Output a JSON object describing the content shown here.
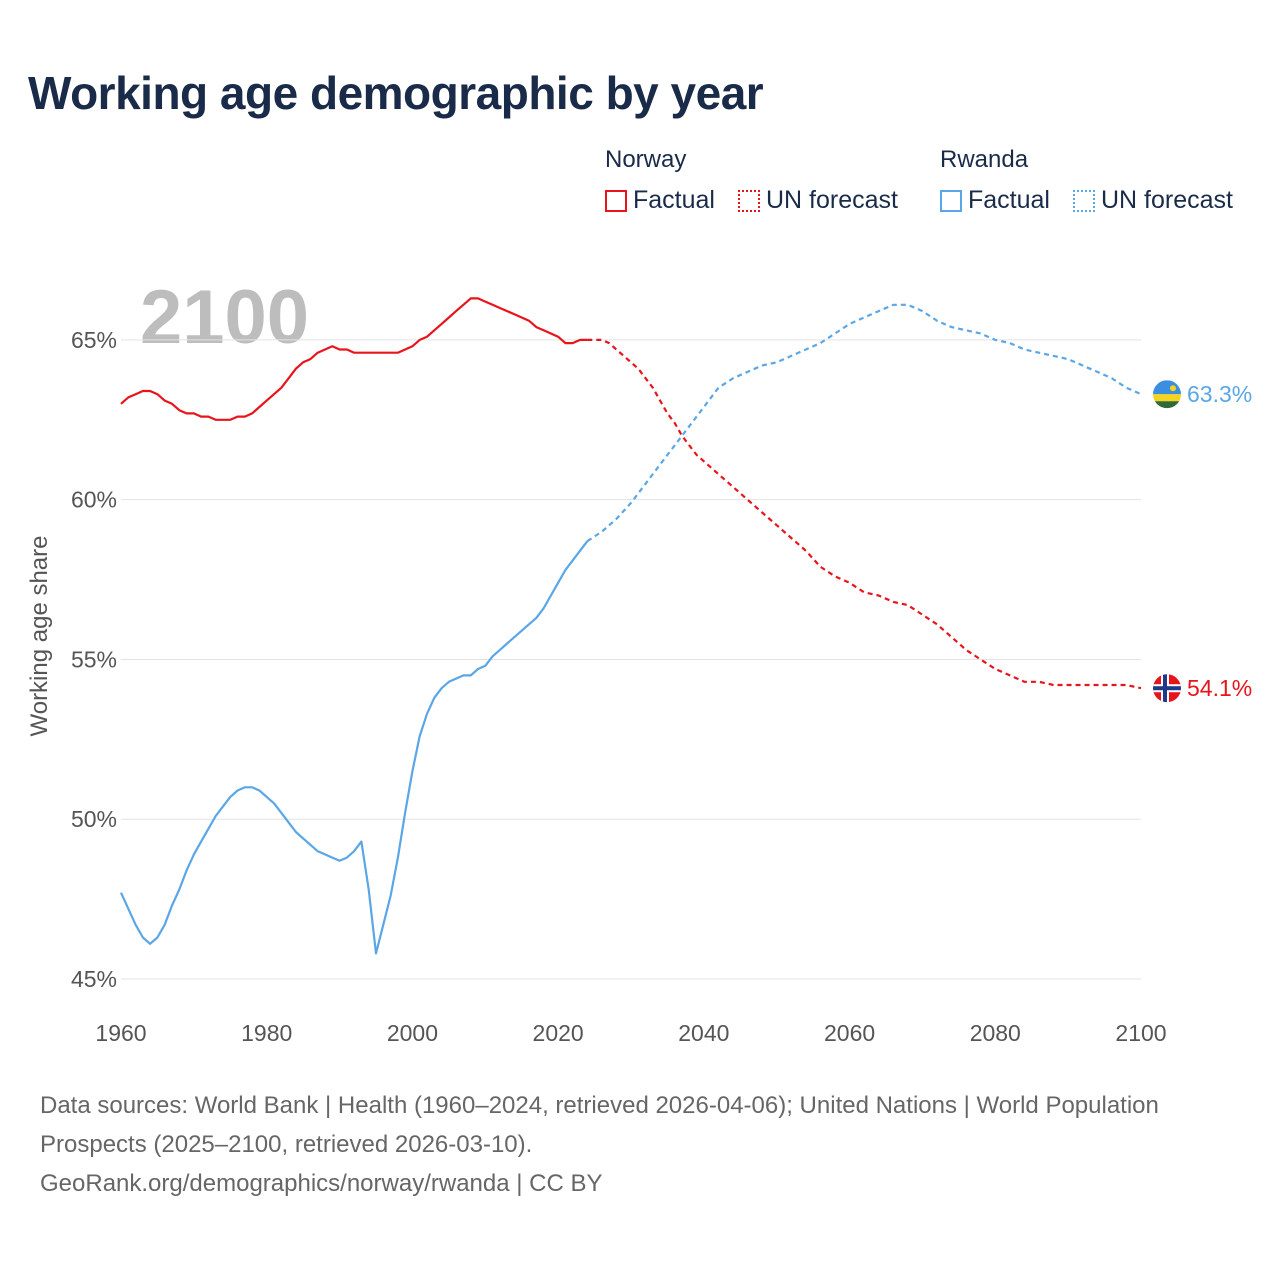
{
  "title": "Working age demographic by year",
  "year_watermark": "2100",
  "legend": {
    "groups": [
      {
        "name": "Norway",
        "factual_label": "Factual",
        "forecast_label": "UN forecast",
        "color": "#e8141b"
      },
      {
        "name": "Rwanda",
        "factual_label": "Factual",
        "forecast_label": "UN forecast",
        "color": "#5aa6e6"
      }
    ]
  },
  "footer": {
    "line1": "Data sources: World Bank | Health (1960–2024, retrieved 2026-04-06); United Nations | World Population Prospects (2025–2100, retrieved 2026-03-10).",
    "line2": "GeoRank.org/demographics/norway/rwanda | CC BY"
  },
  "chart_data": {
    "type": "line",
    "title": "Working age demographic by year",
    "xlabel": "",
    "ylabel": "Working age share",
    "xlim": [
      1960,
      2100
    ],
    "ylim": [
      45,
      67
    ],
    "x_ticks": [
      1960,
      1980,
      2000,
      2020,
      2040,
      2060,
      2080,
      2100
    ],
    "y_ticks": [
      45,
      50,
      55,
      60,
      65
    ],
    "y_tick_labels": [
      "45%",
      "50%",
      "55%",
      "60%",
      "65%"
    ],
    "grid": true,
    "series": [
      {
        "name": "Norway",
        "color": "#e8141b",
        "end_label": "54.1%",
        "flag": "norway-flag",
        "factual": [
          [
            1960,
            63.0
          ],
          [
            1961,
            63.2
          ],
          [
            1962,
            63.3
          ],
          [
            1963,
            63.4
          ],
          [
            1964,
            63.4
          ],
          [
            1965,
            63.3
          ],
          [
            1966,
            63.1
          ],
          [
            1967,
            63.0
          ],
          [
            1968,
            62.8
          ],
          [
            1969,
            62.7
          ],
          [
            1970,
            62.7
          ],
          [
            1971,
            62.6
          ],
          [
            1972,
            62.6
          ],
          [
            1973,
            62.5
          ],
          [
            1974,
            62.5
          ],
          [
            1975,
            62.5
          ],
          [
            1976,
            62.6
          ],
          [
            1977,
            62.6
          ],
          [
            1978,
            62.7
          ],
          [
            1979,
            62.9
          ],
          [
            1980,
            63.1
          ],
          [
            1981,
            63.3
          ],
          [
            1982,
            63.5
          ],
          [
            1983,
            63.8
          ],
          [
            1984,
            64.1
          ],
          [
            1985,
            64.3
          ],
          [
            1986,
            64.4
          ],
          [
            1987,
            64.6
          ],
          [
            1988,
            64.7
          ],
          [
            1989,
            64.8
          ],
          [
            1990,
            64.7
          ],
          [
            1991,
            64.7
          ],
          [
            1992,
            64.6
          ],
          [
            1993,
            64.6
          ],
          [
            1994,
            64.6
          ],
          [
            1995,
            64.6
          ],
          [
            1996,
            64.6
          ],
          [
            1997,
            64.6
          ],
          [
            1998,
            64.6
          ],
          [
            1999,
            64.7
          ],
          [
            2000,
            64.8
          ],
          [
            2001,
            65.0
          ],
          [
            2002,
            65.1
          ],
          [
            2003,
            65.3
          ],
          [
            2004,
            65.5
          ],
          [
            2005,
            65.7
          ],
          [
            2006,
            65.9
          ],
          [
            2007,
            66.1
          ],
          [
            2008,
            66.3
          ],
          [
            2009,
            66.3
          ],
          [
            2010,
            66.2
          ],
          [
            2011,
            66.1
          ],
          [
            2012,
            66.0
          ],
          [
            2013,
            65.9
          ],
          [
            2014,
            65.8
          ],
          [
            2015,
            65.7
          ],
          [
            2016,
            65.6
          ],
          [
            2017,
            65.4
          ],
          [
            2018,
            65.3
          ],
          [
            2019,
            65.2
          ],
          [
            2020,
            65.1
          ],
          [
            2021,
            64.9
          ],
          [
            2022,
            64.9
          ],
          [
            2023,
            65.0
          ],
          [
            2024,
            65.0
          ]
        ],
        "forecast": [
          [
            2024,
            65.0
          ],
          [
            2025,
            65.0
          ],
          [
            2026,
            65.0
          ],
          [
            2027,
            64.9
          ],
          [
            2028,
            64.7
          ],
          [
            2029,
            64.5
          ],
          [
            2030,
            64.3
          ],
          [
            2031,
            64.1
          ],
          [
            2032,
            63.8
          ],
          [
            2033,
            63.5
          ],
          [
            2034,
            63.1
          ],
          [
            2035,
            62.7
          ],
          [
            2036,
            62.4
          ],
          [
            2037,
            62.0
          ],
          [
            2038,
            61.7
          ],
          [
            2039,
            61.4
          ],
          [
            2040,
            61.2
          ],
          [
            2042,
            60.8
          ],
          [
            2044,
            60.4
          ],
          [
            2046,
            60.0
          ],
          [
            2048,
            59.6
          ],
          [
            2050,
            59.2
          ],
          [
            2052,
            58.8
          ],
          [
            2054,
            58.4
          ],
          [
            2056,
            57.9
          ],
          [
            2058,
            57.6
          ],
          [
            2060,
            57.4
          ],
          [
            2062,
            57.1
          ],
          [
            2064,
            57.0
          ],
          [
            2066,
            56.8
          ],
          [
            2068,
            56.7
          ],
          [
            2070,
            56.4
          ],
          [
            2072,
            56.1
          ],
          [
            2074,
            55.7
          ],
          [
            2076,
            55.3
          ],
          [
            2078,
            55.0
          ],
          [
            2080,
            54.7
          ],
          [
            2082,
            54.5
          ],
          [
            2084,
            54.3
          ],
          [
            2086,
            54.3
          ],
          [
            2088,
            54.2
          ],
          [
            2090,
            54.2
          ],
          [
            2092,
            54.2
          ],
          [
            2094,
            54.2
          ],
          [
            2096,
            54.2
          ],
          [
            2098,
            54.2
          ],
          [
            2100,
            54.1
          ]
        ]
      },
      {
        "name": "Rwanda",
        "color": "#5aa6e6",
        "end_label": "63.3%",
        "flag": "rwanda-flag",
        "factual": [
          [
            1960,
            47.7
          ],
          [
            1961,
            47.2
          ],
          [
            1962,
            46.7
          ],
          [
            1963,
            46.3
          ],
          [
            1964,
            46.1
          ],
          [
            1965,
            46.3
          ],
          [
            1966,
            46.7
          ],
          [
            1967,
            47.3
          ],
          [
            1968,
            47.8
          ],
          [
            1969,
            48.4
          ],
          [
            1970,
            48.9
          ],
          [
            1971,
            49.3
          ],
          [
            1972,
            49.7
          ],
          [
            1973,
            50.1
          ],
          [
            1974,
            50.4
          ],
          [
            1975,
            50.7
          ],
          [
            1976,
            50.9
          ],
          [
            1977,
            51.0
          ],
          [
            1978,
            51.0
          ],
          [
            1979,
            50.9
          ],
          [
            1980,
            50.7
          ],
          [
            1981,
            50.5
          ],
          [
            1982,
            50.2
          ],
          [
            1983,
            49.9
          ],
          [
            1984,
            49.6
          ],
          [
            1985,
            49.4
          ],
          [
            1986,
            49.2
          ],
          [
            1987,
            49.0
          ],
          [
            1988,
            48.9
          ],
          [
            1989,
            48.8
          ],
          [
            1990,
            48.7
          ],
          [
            1991,
            48.8
          ],
          [
            1992,
            49.0
          ],
          [
            1993,
            49.3
          ],
          [
            1994,
            47.8
          ],
          [
            1995,
            45.8
          ],
          [
            1996,
            46.7
          ],
          [
            1997,
            47.6
          ],
          [
            1998,
            48.8
          ],
          [
            1999,
            50.2
          ],
          [
            2000,
            51.5
          ],
          [
            2001,
            52.6
          ],
          [
            2002,
            53.3
          ],
          [
            2003,
            53.8
          ],
          [
            2004,
            54.1
          ],
          [
            2005,
            54.3
          ],
          [
            2006,
            54.4
          ],
          [
            2007,
            54.5
          ],
          [
            2008,
            54.5
          ],
          [
            2009,
            54.7
          ],
          [
            2010,
            54.8
          ],
          [
            2011,
            55.1
          ],
          [
            2012,
            55.3
          ],
          [
            2013,
            55.5
          ],
          [
            2014,
            55.7
          ],
          [
            2015,
            55.9
          ],
          [
            2016,
            56.1
          ],
          [
            2017,
            56.3
          ],
          [
            2018,
            56.6
          ],
          [
            2019,
            57.0
          ],
          [
            2020,
            57.4
          ],
          [
            2021,
            57.8
          ],
          [
            2022,
            58.1
          ],
          [
            2023,
            58.4
          ],
          [
            2024,
            58.7
          ]
        ],
        "forecast": [
          [
            2024,
            58.7
          ],
          [
            2026,
            59.0
          ],
          [
            2028,
            59.4
          ],
          [
            2030,
            59.9
          ],
          [
            2032,
            60.5
          ],
          [
            2034,
            61.1
          ],
          [
            2036,
            61.7
          ],
          [
            2038,
            62.3
          ],
          [
            2040,
            62.9
          ],
          [
            2042,
            63.5
          ],
          [
            2044,
            63.8
          ],
          [
            2046,
            64.0
          ],
          [
            2048,
            64.2
          ],
          [
            2050,
            64.3
          ],
          [
            2052,
            64.5
          ],
          [
            2054,
            64.7
          ],
          [
            2056,
            64.9
          ],
          [
            2058,
            65.2
          ],
          [
            2060,
            65.5
          ],
          [
            2062,
            65.7
          ],
          [
            2064,
            65.9
          ],
          [
            2066,
            66.1
          ],
          [
            2068,
            66.1
          ],
          [
            2070,
            65.9
          ],
          [
            2072,
            65.6
          ],
          [
            2074,
            65.4
          ],
          [
            2076,
            65.3
          ],
          [
            2078,
            65.2
          ],
          [
            2080,
            65.0
          ],
          [
            2082,
            64.9
          ],
          [
            2084,
            64.7
          ],
          [
            2086,
            64.6
          ],
          [
            2088,
            64.5
          ],
          [
            2090,
            64.4
          ],
          [
            2092,
            64.2
          ],
          [
            2094,
            64.0
          ],
          [
            2096,
            63.8
          ],
          [
            2098,
            63.5
          ],
          [
            2100,
            63.3
          ]
        ]
      }
    ]
  }
}
